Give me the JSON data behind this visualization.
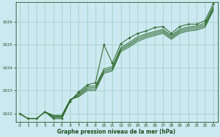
{
  "xlabel": "Graphe pression niveau de la mer (hPa)",
  "background_color": "#cce8f0",
  "grid_color": "#99ccbb",
  "line_color": "#2d6a2d",
  "text_color": "#1a4d1a",
  "xlim": [
    -0.5,
    23.5
  ],
  "ylim": [
    1021.65,
    1026.85
  ],
  "yticks": [
    1022,
    1023,
    1024,
    1025,
    1026
  ],
  "xticks": [
    0,
    1,
    2,
    3,
    4,
    5,
    6,
    7,
    8,
    9,
    10,
    11,
    12,
    13,
    14,
    15,
    16,
    17,
    18,
    19,
    20,
    21,
    22,
    23
  ],
  "line_main": [
    1022.0,
    1021.78,
    1021.78,
    1022.08,
    1021.78,
    1021.78,
    1022.55,
    1022.95,
    1023.25,
    1023.35,
    1025.0,
    1024.2,
    1025.05,
    1025.3,
    1025.5,
    1025.6,
    1025.75,
    1025.8,
    1025.5,
    1025.8,
    1025.9,
    1025.9,
    1026.05,
    1026.8
  ],
  "line2": [
    1022.0,
    1021.78,
    1021.78,
    1022.08,
    1021.83,
    1021.83,
    1022.55,
    1022.88,
    1023.18,
    1023.22,
    1023.95,
    1024.05,
    1024.88,
    1025.1,
    1025.35,
    1025.48,
    1025.58,
    1025.68,
    1025.42,
    1025.68,
    1025.78,
    1025.82,
    1025.95,
    1026.68
  ],
  "line3": [
    1022.0,
    1021.78,
    1021.78,
    1022.08,
    1021.87,
    1021.87,
    1022.58,
    1022.83,
    1023.12,
    1023.15,
    1023.88,
    1023.98,
    1024.82,
    1025.03,
    1025.28,
    1025.42,
    1025.52,
    1025.62,
    1025.36,
    1025.62,
    1025.72,
    1025.76,
    1025.88,
    1026.62
  ],
  "line4": [
    1022.0,
    1021.78,
    1021.78,
    1022.08,
    1021.9,
    1021.9,
    1022.6,
    1022.78,
    1023.06,
    1023.08,
    1023.82,
    1023.92,
    1024.76,
    1024.97,
    1025.22,
    1025.36,
    1025.46,
    1025.56,
    1025.3,
    1025.56,
    1025.66,
    1025.7,
    1025.82,
    1026.56
  ],
  "line5": [
    1022.0,
    1021.78,
    1021.78,
    1022.08,
    1021.93,
    1021.93,
    1022.63,
    1022.73,
    1023.0,
    1023.01,
    1023.76,
    1023.86,
    1024.7,
    1024.9,
    1025.15,
    1025.3,
    1025.4,
    1025.5,
    1025.24,
    1025.5,
    1025.6,
    1025.64,
    1025.76,
    1026.5
  ]
}
